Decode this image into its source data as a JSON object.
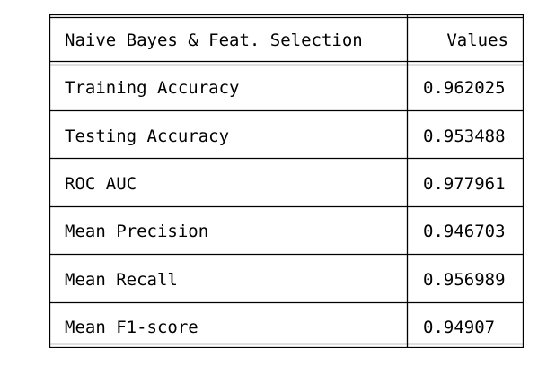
{
  "table": {
    "header": {
      "label": "Naive Bayes & Feat. Selection",
      "value": "Values"
    },
    "rows": [
      {
        "label": "Training Accuracy",
        "value": "0.962025"
      },
      {
        "label": "Testing Accuracy",
        "value": "0.953488"
      },
      {
        "label": "ROC AUC",
        "value": "0.977961"
      },
      {
        "label": "Mean Precision",
        "value": "0.946703"
      },
      {
        "label": "Mean Recall",
        "value": "0.956989"
      },
      {
        "label": "Mean F1-score",
        "value": "0.94907"
      }
    ]
  }
}
